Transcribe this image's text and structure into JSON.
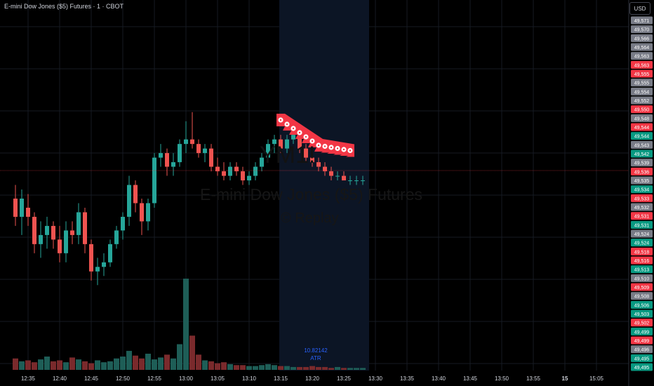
{
  "header": {
    "title": "E-mini Dow Jones ($5) Futures · 1 · CBOT",
    "currency_button": "USD"
  },
  "watermark": {
    "symbol": "YM1!",
    "line1": "E-mini Dow Jones ($5) Futures",
    "line2": "© Replay"
  },
  "indicator": {
    "value": "10.82142",
    "name": "ATR"
  },
  "colors": {
    "up": "#26a69a",
    "down": "#ef5350",
    "background": "#000000",
    "replay_zone": "#0c1525",
    "price_line": "#f23645",
    "tag_grey": "#787b86"
  },
  "time_axis": [
    "12:35",
    "12:40",
    "12:45",
    "12:50",
    "12:55",
    "13:00",
    "13:05",
    "13:10",
    "13:15",
    "13:20",
    "13:25",
    "13:30",
    "13:35",
    "13:40",
    "13:45",
    "13:50",
    "13:55",
    "15",
    "15:05"
  ],
  "price_axis": [
    {
      "label": "49,571",
      "tone": "grey"
    },
    {
      "label": "49,570",
      "tone": "grey"
    },
    {
      "label": "49,566",
      "tone": "grey"
    },
    {
      "label": "49,564",
      "tone": "grey"
    },
    {
      "label": "49,563",
      "tone": "grey"
    },
    {
      "label": "49,563",
      "tone": "red"
    },
    {
      "label": "49,555",
      "tone": "red"
    },
    {
      "label": "49,555",
      "tone": "grey"
    },
    {
      "label": "49,554",
      "tone": "grey"
    },
    {
      "label": "49,552",
      "tone": "grey"
    },
    {
      "label": "49,550",
      "tone": "red"
    },
    {
      "label": "49,548",
      "tone": "grey"
    },
    {
      "label": "49,544",
      "tone": "red"
    },
    {
      "label": "49,544",
      "tone": "green"
    },
    {
      "label": "49,543",
      "tone": "grey"
    },
    {
      "label": "49,542",
      "tone": "green"
    },
    {
      "label": "49,539",
      "tone": "grey"
    },
    {
      "label": "49,536",
      "tone": "red"
    },
    {
      "label": "49,535",
      "tone": "grey"
    },
    {
      "label": "49,534",
      "tone": "green"
    },
    {
      "label": "49,533",
      "tone": "red"
    },
    {
      "label": "49,532",
      "tone": "grey"
    },
    {
      "label": "49,531",
      "tone": "red"
    },
    {
      "label": "49,531",
      "tone": "green"
    },
    {
      "label": "49,524",
      "tone": "grey"
    },
    {
      "label": "49,524",
      "tone": "green"
    },
    {
      "label": "49,518",
      "tone": "red"
    },
    {
      "label": "49,516",
      "tone": "red"
    },
    {
      "label": "49,513",
      "tone": "green"
    },
    {
      "label": "49,510",
      "tone": "grey"
    },
    {
      "label": "49,509",
      "tone": "red"
    },
    {
      "label": "49,508",
      "tone": "grey"
    },
    {
      "label": "49,506",
      "tone": "green"
    },
    {
      "label": "49,503",
      "tone": "green"
    },
    {
      "label": "49,502",
      "tone": "red"
    },
    {
      "label": "49,499",
      "tone": "green"
    },
    {
      "label": "49,499",
      "tone": "red"
    },
    {
      "label": "49,496",
      "tone": "grey"
    },
    {
      "label": "49,495",
      "tone": "green"
    },
    {
      "label": "49,495",
      "tone": "green"
    }
  ],
  "chart_data": {
    "type": "candlestick",
    "interval": "1 minute",
    "y_range": [
      49494,
      49572
    ],
    "current_price": 49536,
    "series": [
      {
        "t": "12:33",
        "o": 49532,
        "h": 49535,
        "l": 49526,
        "c": 49528
      },
      {
        "t": "12:34",
        "o": 49528,
        "h": 49534,
        "l": 49524,
        "c": 49532
      },
      {
        "t": "12:35",
        "o": 49530,
        "h": 49533,
        "l": 49526,
        "c": 49528
      },
      {
        "t": "12:36",
        "o": 49528,
        "h": 49529,
        "l": 49520,
        "c": 49522
      },
      {
        "t": "12:37",
        "o": 49522,
        "h": 49527,
        "l": 49519,
        "c": 49524
      },
      {
        "t": "12:38",
        "o": 49524,
        "h": 49528,
        "l": 49521,
        "c": 49526
      },
      {
        "t": "12:39",
        "o": 49526,
        "h": 49527,
        "l": 49521,
        "c": 49523
      },
      {
        "t": "12:40",
        "o": 49523,
        "h": 49526,
        "l": 49518,
        "c": 49520
      },
      {
        "t": "12:41",
        "o": 49520,
        "h": 49527,
        "l": 49518,
        "c": 49525
      },
      {
        "t": "12:42",
        "o": 49525,
        "h": 49527,
        "l": 49522,
        "c": 49524
      },
      {
        "t": "12:43",
        "o": 49524,
        "h": 49531,
        "l": 49522,
        "c": 49529
      },
      {
        "t": "12:44",
        "o": 49529,
        "h": 49530,
        "l": 49520,
        "c": 49522
      },
      {
        "t": "12:45",
        "o": 49522,
        "h": 49523,
        "l": 49514,
        "c": 49516
      },
      {
        "t": "12:46",
        "o": 49516,
        "h": 49519,
        "l": 49513,
        "c": 49517
      },
      {
        "t": "12:47",
        "o": 49517,
        "h": 49520,
        "l": 49515,
        "c": 49518
      },
      {
        "t": "12:48",
        "o": 49518,
        "h": 49523,
        "l": 49517,
        "c": 49522
      },
      {
        "t": "12:49",
        "o": 49522,
        "h": 49526,
        "l": 49521,
        "c": 49525
      },
      {
        "t": "12:50",
        "o": 49525,
        "h": 49529,
        "l": 49523,
        "c": 49528
      },
      {
        "t": "12:51",
        "o": 49528,
        "h": 49537,
        "l": 49526,
        "c": 49535
      },
      {
        "t": "12:52",
        "o": 49535,
        "h": 49536,
        "l": 49529,
        "c": 49531
      },
      {
        "t": "12:53",
        "o": 49531,
        "h": 49532,
        "l": 49524,
        "c": 49527
      },
      {
        "t": "12:54",
        "o": 49527,
        "h": 49532,
        "l": 49525,
        "c": 49531
      },
      {
        "t": "12:55",
        "o": 49531,
        "h": 49542,
        "l": 49530,
        "c": 49541
      },
      {
        "t": "12:56",
        "o": 49541,
        "h": 49544,
        "l": 49539,
        "c": 49542
      },
      {
        "t": "12:57",
        "o": 49542,
        "h": 49543,
        "l": 49537,
        "c": 49539
      },
      {
        "t": "12:58",
        "o": 49539,
        "h": 49542,
        "l": 49537,
        "c": 49540
      },
      {
        "t": "12:59",
        "o": 49540,
        "h": 49545,
        "l": 49539,
        "c": 49544
      },
      {
        "t": "13:00",
        "o": 49544,
        "h": 49549,
        "l": 49542,
        "c": 49545
      },
      {
        "t": "13:01",
        "o": 49545,
        "h": 49551,
        "l": 49543,
        "c": 49544
      },
      {
        "t": "13:02",
        "o": 49544,
        "h": 49545,
        "l": 49541,
        "c": 49542
      },
      {
        "t": "13:03",
        "o": 49542,
        "h": 49544,
        "l": 49540,
        "c": 49543
      },
      {
        "t": "13:04",
        "o": 49543,
        "h": 49544,
        "l": 49538,
        "c": 49539
      },
      {
        "t": "13:05",
        "o": 49539,
        "h": 49541,
        "l": 49537,
        "c": 49538
      },
      {
        "t": "13:06",
        "o": 49538,
        "h": 49540,
        "l": 49536,
        "c": 49537
      },
      {
        "t": "13:07",
        "o": 49537,
        "h": 49540,
        "l": 49536,
        "c": 49539
      },
      {
        "t": "13:08",
        "o": 49539,
        "h": 49540,
        "l": 49537,
        "c": 49538
      },
      {
        "t": "13:09",
        "o": 49538,
        "h": 49539,
        "l": 49535,
        "c": 49536
      },
      {
        "t": "13:10",
        "o": 49536,
        "h": 49538,
        "l": 49535,
        "c": 49537
      },
      {
        "t": "13:11",
        "o": 49537,
        "h": 49540,
        "l": 49536,
        "c": 49539
      },
      {
        "t": "13:12",
        "o": 49539,
        "h": 49542,
        "l": 49538,
        "c": 49541
      },
      {
        "t": "13:13",
        "o": 49541,
        "h": 49545,
        "l": 49540,
        "c": 49544
      },
      {
        "t": "13:14",
        "o": 49544,
        "h": 49546,
        "l": 49542,
        "c": 49545
      },
      {
        "t": "13:15",
        "o": 49545,
        "h": 49546,
        "l": 49542,
        "c": 49543
      },
      {
        "t": "13:16",
        "o": 49543,
        "h": 49546,
        "l": 49542,
        "c": 49545
      },
      {
        "t": "13:17",
        "o": 49545,
        "h": 49547,
        "l": 49544,
        "c": 49546
      },
      {
        "t": "13:18",
        "o": 49546,
        "h": 49547,
        "l": 49542,
        "c": 49543
      },
      {
        "t": "13:19",
        "o": 49543,
        "h": 49544,
        "l": 49540,
        "c": 49541
      },
      {
        "t": "13:20",
        "o": 49541,
        "h": 49542,
        "l": 49539,
        "c": 49540
      },
      {
        "t": "13:21",
        "o": 49540,
        "h": 49541,
        "l": 49538,
        "c": 49539
      },
      {
        "t": "13:22",
        "o": 49539,
        "h": 49540,
        "l": 49537,
        "c": 49538
      },
      {
        "t": "13:23",
        "o": 49538,
        "h": 49539,
        "l": 49536,
        "c": 49537
      },
      {
        "t": "13:24",
        "o": 49537,
        "h": 49538,
        "l": 49536,
        "c": 49537
      },
      {
        "t": "13:25",
        "o": 49537,
        "h": 49538,
        "l": 49536,
        "c": 49536
      },
      {
        "t": "13:26",
        "o": 49536,
        "h": 49537,
        "l": 49535,
        "c": 49536
      },
      {
        "t": "13:27",
        "o": 49536,
        "h": 49537,
        "l": 49535,
        "c": 49536
      },
      {
        "t": "13:28",
        "o": 49536,
        "h": 49537,
        "l": 49535,
        "c": 49536
      }
    ],
    "volume": [
      12,
      9,
      10,
      8,
      11,
      14,
      9,
      10,
      8,
      13,
      11,
      9,
      7,
      10,
      8,
      9,
      12,
      14,
      20,
      15,
      12,
      17,
      11,
      13,
      16,
      12,
      27,
      96,
      36,
      16,
      10,
      9,
      7,
      8,
      6,
      5,
      5,
      4,
      4,
      5,
      6,
      5,
      4,
      4,
      3,
      3,
      3,
      4,
      3,
      3,
      2,
      3,
      2,
      2,
      2,
      2
    ],
    "markers": [
      {
        "t": "13:15",
        "kind": "trade-cluster"
      },
      {
        "t": "13:16",
        "kind": "trade-cluster"
      },
      {
        "t": "13:17",
        "kind": "trade-cluster"
      },
      {
        "t": "13:18",
        "kind": "trade-cluster"
      },
      {
        "t": "13:19",
        "kind": "trade-cluster"
      },
      {
        "t": "13:20",
        "kind": "trade-cluster"
      },
      {
        "t": "13:21",
        "kind": "trade-cluster"
      },
      {
        "t": "13:22",
        "kind": "trade-cluster"
      },
      {
        "t": "13:23",
        "kind": "trade-cluster"
      },
      {
        "t": "13:24",
        "kind": "trade-cluster"
      },
      {
        "t": "13:25",
        "kind": "trade-cluster"
      },
      {
        "t": "13:26",
        "kind": "trade-cluster"
      }
    ],
    "atr": 10.82142
  }
}
